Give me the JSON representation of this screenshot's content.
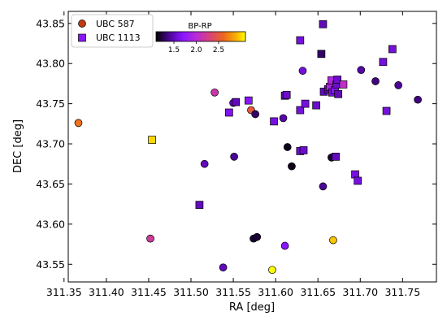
{
  "chart_data": {
    "type": "scatter",
    "xlabel": "RA [deg]",
    "ylabel": "DEC [deg]",
    "xlim": [
      311.355,
      311.79
    ],
    "ylim": [
      43.528,
      43.865
    ],
    "xticks": [
      311.35,
      311.4,
      311.45,
      311.5,
      311.55,
      311.6,
      311.65,
      311.7,
      311.75
    ],
    "xtick_labels": [
      "311.35",
      "311.40",
      "311.45",
      "311.50",
      "311.55",
      "311.60",
      "311.65",
      "311.70",
      "311.75"
    ],
    "yticks": [
      43.55,
      43.6,
      43.65,
      43.7,
      43.75,
      43.8,
      43.85
    ],
    "ytick_labels": [
      "43.55",
      "43.60",
      "43.65",
      "43.70",
      "43.75",
      "43.80",
      "43.85"
    ],
    "grid": false,
    "legend": {
      "placement": "top-left",
      "entries": [
        {
          "label": "UBC 587",
          "marker": "circle",
          "color": "#c23a0f"
        },
        {
          "label": "UBC 1113",
          "marker": "square",
          "color": "#8a16ff"
        }
      ]
    },
    "colorbar": {
      "label": "BP-RP",
      "range": [
        1.1,
        3.1
      ],
      "ticks": [
        1.5,
        2.0,
        2.5
      ],
      "tick_labels": [
        "1.5",
        "2.0",
        "2.5"
      ],
      "colormap": "gnuplot"
    },
    "series": [
      {
        "name": "UBC 587",
        "marker": "circle",
        "points": [
          {
            "x": 311.367,
            "y": 43.726,
            "c": 2.65
          },
          {
            "x": 311.452,
            "y": 43.582,
            "c": 2.2
          },
          {
            "x": 311.516,
            "y": 43.675,
            "c": 1.5
          },
          {
            "x": 311.528,
            "y": 43.764,
            "c": 2.15
          },
          {
            "x": 311.538,
            "y": 43.546,
            "c": 1.5
          },
          {
            "x": 311.55,
            "y": 43.751,
            "c": 1.5
          },
          {
            "x": 311.551,
            "y": 43.684,
            "c": 1.4
          },
          {
            "x": 311.571,
            "y": 43.742,
            "c": 2.5
          },
          {
            "x": 311.574,
            "y": 43.582,
            "c": 1.2
          },
          {
            "x": 311.576,
            "y": 43.737,
            "c": 1.3
          },
          {
            "x": 311.578,
            "y": 43.584,
            "c": 1.2
          },
          {
            "x": 311.596,
            "y": 43.543,
            "c": 3.1
          },
          {
            "x": 311.609,
            "y": 43.732,
            "c": 1.45
          },
          {
            "x": 311.611,
            "y": 43.573,
            "c": 1.7
          },
          {
            "x": 311.614,
            "y": 43.696,
            "c": 1.15
          },
          {
            "x": 311.619,
            "y": 43.672,
            "c": 1.15
          },
          {
            "x": 311.632,
            "y": 43.791,
            "c": 1.6
          },
          {
            "x": 311.656,
            "y": 43.647,
            "c": 1.4
          },
          {
            "x": 311.666,
            "y": 43.683,
            "c": 1.2
          },
          {
            "x": 311.668,
            "y": 43.58,
            "c": 2.95
          },
          {
            "x": 311.701,
            "y": 43.792,
            "c": 1.45
          },
          {
            "x": 311.718,
            "y": 43.778,
            "c": 1.35
          },
          {
            "x": 311.745,
            "y": 43.773,
            "c": 1.4
          },
          {
            "x": 311.768,
            "y": 43.755,
            "c": 1.35
          }
        ]
      },
      {
        "name": "UBC 1113",
        "marker": "square",
        "points": [
          {
            "x": 311.454,
            "y": 43.705,
            "c": 3.0
          },
          {
            "x": 311.51,
            "y": 43.624,
            "c": 1.5
          },
          {
            "x": 311.545,
            "y": 43.739,
            "c": 1.65
          },
          {
            "x": 311.553,
            "y": 43.752,
            "c": 1.5
          },
          {
            "x": 311.568,
            "y": 43.754,
            "c": 1.7
          },
          {
            "x": 311.598,
            "y": 43.728,
            "c": 1.6
          },
          {
            "x": 311.611,
            "y": 43.76,
            "c": 1.5
          },
          {
            "x": 311.613,
            "y": 43.761,
            "c": 1.55
          },
          {
            "x": 311.629,
            "y": 43.829,
            "c": 1.6
          },
          {
            "x": 311.629,
            "y": 43.742,
            "c": 1.6
          },
          {
            "x": 311.629,
            "y": 43.691,
            "c": 1.55
          },
          {
            "x": 311.633,
            "y": 43.692,
            "c": 1.55
          },
          {
            "x": 311.635,
            "y": 43.75,
            "c": 1.6
          },
          {
            "x": 311.648,
            "y": 43.748,
            "c": 1.55
          },
          {
            "x": 311.654,
            "y": 43.812,
            "c": 1.3
          },
          {
            "x": 311.656,
            "y": 43.849,
            "c": 1.5
          },
          {
            "x": 311.657,
            "y": 43.765,
            "c": 1.5
          },
          {
            "x": 311.662,
            "y": 43.768,
            "c": 1.5
          },
          {
            "x": 311.664,
            "y": 43.771,
            "c": 1.9
          },
          {
            "x": 311.666,
            "y": 43.779,
            "c": 1.95
          },
          {
            "x": 311.667,
            "y": 43.764,
            "c": 1.6
          },
          {
            "x": 311.67,
            "y": 43.767,
            "c": 1.7
          },
          {
            "x": 311.672,
            "y": 43.774,
            "c": 1.55
          },
          {
            "x": 311.673,
            "y": 43.78,
            "c": 1.55
          },
          {
            "x": 311.674,
            "y": 43.762,
            "c": 1.5
          },
          {
            "x": 311.671,
            "y": 43.684,
            "c": 1.5
          },
          {
            "x": 311.68,
            "y": 43.774,
            "c": 2.05
          },
          {
            "x": 311.694,
            "y": 43.662,
            "c": 1.6
          },
          {
            "x": 311.697,
            "y": 43.654,
            "c": 1.6
          },
          {
            "x": 311.727,
            "y": 43.802,
            "c": 1.6
          },
          {
            "x": 311.731,
            "y": 43.741,
            "c": 1.6
          },
          {
            "x": 311.738,
            "y": 43.818,
            "c": 1.6
          }
        ]
      }
    ]
  }
}
